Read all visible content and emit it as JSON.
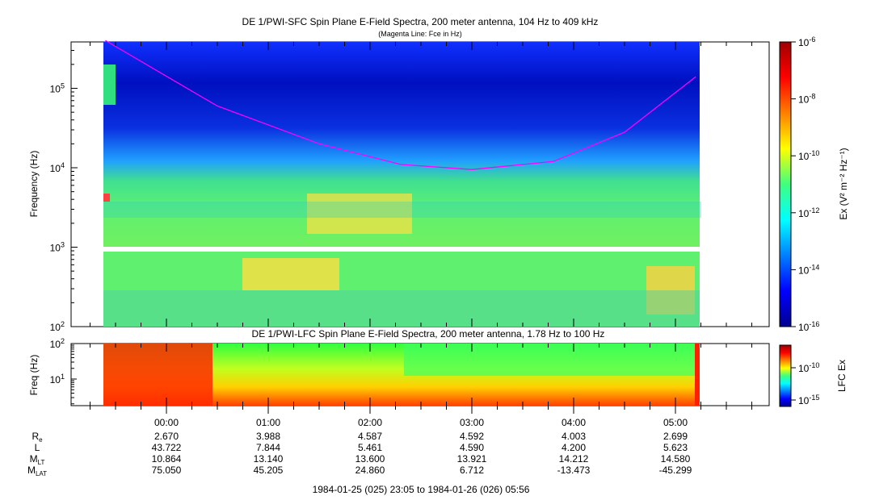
{
  "chart_data": [
    {
      "type": "heatmap",
      "title": "DE 1/PWI-SFC  Spin Plane E-Field Spectra, 200 meter antenna, 104 Hz to 409 kHz",
      "subtitle": "(Magenta Line: Fce in Hz)",
      "ylabel": "Frequency (Hz)",
      "yscale": "log",
      "ylim": [
        100,
        409000
      ],
      "y_ticks": [
        {
          "base": "10",
          "exp": "2"
        },
        {
          "base": "10",
          "exp": "3"
        },
        {
          "base": "10",
          "exp": "4"
        },
        {
          "base": "10",
          "exp": "5"
        }
      ],
      "colorbar_label": "Ex (V² m⁻² Hz⁻¹)",
      "colorbar_ticks": [
        {
          "base": "10",
          "exp": "-6"
        },
        {
          "base": "10",
          "exp": "-8"
        },
        {
          "base": "10",
          "exp": "-10"
        },
        {
          "base": "10",
          "exp": "-12"
        },
        {
          "base": "10",
          "exp": "-14"
        },
        {
          "base": "10",
          "exp": "-16"
        }
      ],
      "fce_line": {
        "color": "#ff00ff",
        "t_hours": [
          -0.6,
          0.5,
          1.5,
          2.3,
          3.0,
          3.8,
          4.5,
          5.2
        ],
        "freq_hz": [
          400000,
          60000,
          20000,
          11000,
          9500,
          12000,
          28000,
          140000
        ]
      }
    },
    {
      "type": "heatmap",
      "title": "DE 1/PWI-LFC  Spin Plane E-Field Spectra, 200 meter antenna, 1.78 Hz to 100 Hz",
      "ylabel": "Freq (Hz)",
      "yscale": "log",
      "ylim": [
        1.78,
        100
      ],
      "y_ticks": [
        {
          "base": "10",
          "exp": "1"
        },
        {
          "base": "10",
          "exp": "2"
        }
      ],
      "colorbar_label": "LFC Ex",
      "colorbar_ticks": [
        {
          "base": "10",
          "exp": "-10"
        },
        {
          "base": "10",
          "exp": "-15"
        }
      ]
    }
  ],
  "x_axis": {
    "ticks": [
      "00:00",
      "01:00",
      "02:00",
      "03:00",
      "04:00",
      "05:00"
    ],
    "rows": [
      {
        "label": "R",
        "sub": "e",
        "values": [
          "2.670",
          "3.988",
          "4.587",
          "4.592",
          "4.003",
          "2.699"
        ]
      },
      {
        "label": "L",
        "sub": "",
        "values": [
          "43.722",
          "7.844",
          "5.461",
          "4.590",
          "4.200",
          "5.623"
        ]
      },
      {
        "label": "M",
        "sub": "LT",
        "values": [
          "10.864",
          "13.140",
          "13.600",
          "13.921",
          "14.212",
          "14.580"
        ]
      },
      {
        "label": "M",
        "sub": "LAT",
        "values": [
          "75.050",
          "45.205",
          "24.860",
          "6.712",
          "-13.473",
          "-45.299"
        ]
      }
    ],
    "footer": "1984-01-25 (025) 23:05 to 1984-01-26 (026) 05:56"
  },
  "colors": {
    "fce": "#ff00ff",
    "background_low": "#0000a0",
    "gap": "#ffffff"
  }
}
